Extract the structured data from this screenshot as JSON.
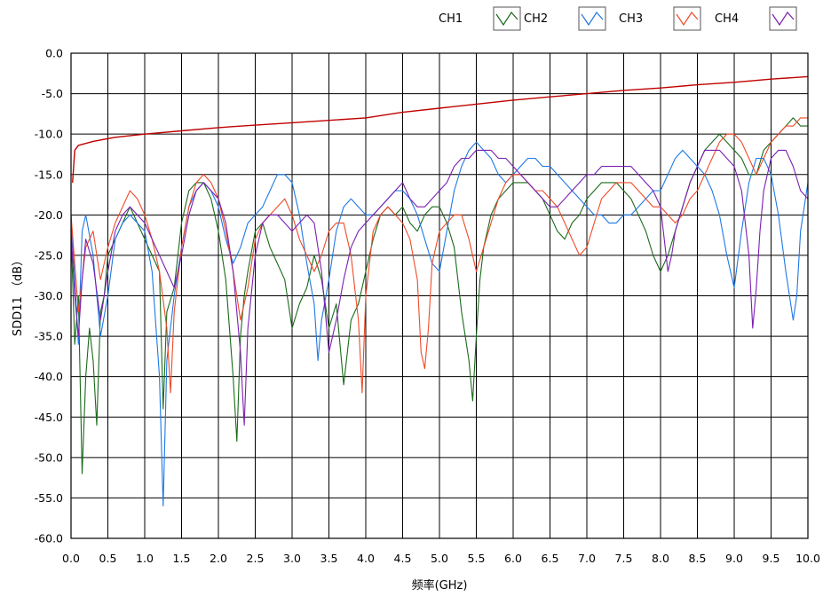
{
  "chart_data": {
    "type": "line",
    "title": "",
    "xlabel": "频率(GHz)",
    "ylabel": "SDD11 （dB）",
    "xlim": [
      0,
      10
    ],
    "ylim": [
      -60,
      0
    ],
    "grid": true,
    "legend_position": "top-right",
    "x_ticks": [
      "0.0",
      "0.5",
      "1.0",
      "1.5",
      "2.0",
      "2.5",
      "3.0",
      "3.5",
      "4.0",
      "4.5",
      "5.0",
      "5.5",
      "6.0",
      "6.5",
      "7.0",
      "7.5",
      "8.0",
      "8.5",
      "9.0",
      "9.5",
      "10.0"
    ],
    "y_ticks": [
      "0.0",
      "-5.0",
      "-10.0",
      "-15.0",
      "-20.0",
      "-25.0",
      "-30.0",
      "-35.0",
      "-40.0",
      "-45.0",
      "-50.0",
      "-55.0",
      "-60.0"
    ],
    "limit_line": {
      "color": "#c00000",
      "x": [
        0.02,
        0.05,
        0.1,
        0.3,
        0.6,
        1.0,
        1.5,
        2.0,
        2.5,
        3.0,
        3.5,
        4.0,
        4.5,
        5.0,
        5.5,
        6.0,
        6.5,
        7.0,
        7.5,
        8.0,
        8.5,
        9.0,
        9.5,
        10.0
      ],
      "y": [
        -16.0,
        -12.0,
        -11.4,
        -10.9,
        -10.4,
        -10.0,
        -9.6,
        -9.2,
        -8.9,
        -8.6,
        -8.3,
        -8.0,
        -7.3,
        -6.8,
        -6.3,
        -5.8,
        -5.4,
        -5.0,
        -4.6,
        -4.3,
        -3.9,
        -3.6,
        -3.2,
        -2.9
      ]
    },
    "series": [
      {
        "name": "CH1",
        "color": "#1a6a1a",
        "x": [
          0.0,
          0.05,
          0.1,
          0.15,
          0.2,
          0.25,
          0.3,
          0.35,
          0.4,
          0.45,
          0.5,
          0.6,
          0.7,
          0.8,
          0.9,
          1.0,
          1.1,
          1.2,
          1.25,
          1.3,
          1.4,
          1.5,
          1.6,
          1.7,
          1.8,
          1.9,
          2.0,
          2.1,
          2.2,
          2.25,
          2.3,
          2.35,
          2.4,
          2.5,
          2.6,
          2.7,
          2.8,
          2.9,
          3.0,
          3.1,
          3.2,
          3.3,
          3.4,
          3.5,
          3.6,
          3.7,
          3.8,
          3.9,
          4.0,
          4.1,
          4.2,
          4.3,
          4.4,
          4.5,
          4.6,
          4.7,
          4.8,
          4.9,
          5.0,
          5.1,
          5.2,
          5.3,
          5.4,
          5.45,
          5.5,
          5.55,
          5.6,
          5.7,
          5.8,
          5.9,
          6.0,
          6.1,
          6.2,
          6.3,
          6.4,
          6.5,
          6.6,
          6.7,
          6.8,
          6.9,
          7.0,
          7.1,
          7.2,
          7.3,
          7.4,
          7.5,
          7.6,
          7.7,
          7.8,
          7.9,
          8.0,
          8.1,
          8.2,
          8.3,
          8.4,
          8.5,
          8.6,
          8.7,
          8.8,
          8.9,
          9.0,
          9.1,
          9.2,
          9.3,
          9.4,
          9.5,
          9.6,
          9.7,
          9.8,
          9.9,
          10.0
        ],
        "y": [
          -22,
          -36,
          -30,
          -52,
          -40,
          -34,
          -38,
          -46,
          -32,
          -30,
          -25,
          -23,
          -21,
          -19,
          -21,
          -23,
          -25,
          -27,
          -44,
          -32,
          -29,
          -21,
          -17,
          -16,
          -16,
          -18,
          -22,
          -28,
          -40,
          -48,
          -35,
          -30,
          -27,
          -22,
          -21,
          -24,
          -26,
          -28,
          -34,
          -31,
          -29,
          -25,
          -28,
          -34,
          -31,
          -41,
          -33,
          -31,
          -27,
          -23,
          -20,
          -19,
          -20,
          -19,
          -21,
          -22,
          -20,
          -19,
          -19,
          -21,
          -24,
          -32,
          -38,
          -43,
          -35,
          -28,
          -24,
          -20,
          -18,
          -17,
          -16,
          -16,
          -16,
          -17,
          -18,
          -20,
          -22,
          -23,
          -21,
          -20,
          -18,
          -17,
          -16,
          -16,
          -16,
          -17,
          -18,
          -20,
          -22,
          -25,
          -27,
          -25,
          -22,
          -19,
          -16,
          -14,
          -12,
          -11,
          -10,
          -11,
          -12,
          -13,
          -15,
          -15,
          -12,
          -11,
          -10,
          -9,
          -8,
          -9,
          -9
        ]
      },
      {
        "name": "CH2",
        "color": "#1e78e6",
        "x": [
          0.0,
          0.05,
          0.1,
          0.15,
          0.2,
          0.3,
          0.4,
          0.5,
          0.6,
          0.7,
          0.8,
          0.9,
          1.0,
          1.1,
          1.2,
          1.25,
          1.3,
          1.4,
          1.5,
          1.6,
          1.7,
          1.8,
          1.9,
          2.0,
          2.1,
          2.2,
          2.3,
          2.4,
          2.5,
          2.6,
          2.7,
          2.8,
          2.9,
          3.0,
          3.1,
          3.2,
          3.3,
          3.35,
          3.4,
          3.5,
          3.6,
          3.7,
          3.8,
          3.9,
          4.0,
          4.1,
          4.2,
          4.3,
          4.4,
          4.5,
          4.6,
          4.7,
          4.8,
          4.9,
          5.0,
          5.1,
          5.2,
          5.3,
          5.4,
          5.5,
          5.6,
          5.7,
          5.8,
          5.9,
          6.0,
          6.1,
          6.2,
          6.3,
          6.4,
          6.5,
          6.6,
          6.7,
          6.8,
          6.9,
          7.0,
          7.1,
          7.2,
          7.3,
          7.4,
          7.5,
          7.6,
          7.7,
          7.8,
          7.9,
          8.0,
          8.1,
          8.2,
          8.3,
          8.4,
          8.5,
          8.6,
          8.7,
          8.8,
          8.9,
          9.0,
          9.1,
          9.2,
          9.3,
          9.4,
          9.5,
          9.6,
          9.7,
          9.8,
          9.85,
          9.9,
          10.0
        ],
        "y": [
          -20,
          -28,
          -36,
          -22,
          -20,
          -25,
          -35,
          -30,
          -23,
          -21,
          -20,
          -21,
          -22,
          -27,
          -40,
          -56,
          -38,
          -30,
          -24,
          -19,
          -17,
          -16,
          -17,
          -19,
          -23,
          -26,
          -24,
          -21,
          -20,
          -19,
          -17,
          -15,
          -15,
          -16,
          -20,
          -26,
          -31,
          -38,
          -33,
          -28,
          -22,
          -19,
          -18,
          -19,
          -20,
          -20,
          -19,
          -18,
          -17,
          -17,
          -18,
          -20,
          -23,
          -26,
          -27,
          -22,
          -17,
          -14,
          -12,
          -11,
          -12,
          -13,
          -15,
          -16,
          -15,
          -14,
          -13,
          -13,
          -14,
          -14,
          -15,
          -16,
          -17,
          -18,
          -19,
          -20,
          -20,
          -21,
          -21,
          -20,
          -20,
          -19,
          -18,
          -17,
          -17,
          -15,
          -13,
          -12,
          -13,
          -14,
          -15,
          -17,
          -20,
          -25,
          -29,
          -22,
          -16,
          -13,
          -13,
          -15,
          -20,
          -27,
          -33,
          -30,
          -22,
          -16
        ]
      },
      {
        "name": "CH3",
        "color": "#f04a28",
        "x": [
          0.0,
          0.05,
          0.1,
          0.15,
          0.2,
          0.3,
          0.4,
          0.5,
          0.6,
          0.7,
          0.8,
          0.9,
          1.0,
          1.1,
          1.2,
          1.3,
          1.35,
          1.4,
          1.5,
          1.6,
          1.7,
          1.8,
          1.9,
          2.0,
          2.1,
          2.2,
          2.3,
          2.4,
          2.5,
          2.6,
          2.7,
          2.8,
          2.9,
          3.0,
          3.1,
          3.2,
          3.3,
          3.4,
          3.5,
          3.6,
          3.7,
          3.8,
          3.9,
          3.95,
          4.0,
          4.1,
          4.2,
          4.3,
          4.4,
          4.5,
          4.6,
          4.7,
          4.75,
          4.8,
          4.85,
          4.9,
          5.0,
          5.1,
          5.2,
          5.3,
          5.4,
          5.5,
          5.6,
          5.7,
          5.8,
          5.9,
          6.0,
          6.1,
          6.2,
          6.3,
          6.4,
          6.5,
          6.6,
          6.7,
          6.8,
          6.9,
          7.0,
          7.1,
          7.2,
          7.3,
          7.4,
          7.5,
          7.6,
          7.7,
          7.8,
          7.9,
          8.0,
          8.1,
          8.2,
          8.3,
          8.4,
          8.5,
          8.6,
          8.7,
          8.8,
          8.9,
          9.0,
          9.1,
          9.2,
          9.3,
          9.4,
          9.5,
          9.6,
          9.7,
          9.8,
          9.9,
          10.0
        ],
        "y": [
          -20,
          -26,
          -32,
          -28,
          -24,
          -22,
          -28,
          -24,
          -21,
          -19,
          -17,
          -18,
          -20,
          -23,
          -27,
          -34,
          -42,
          -32,
          -24,
          -19,
          -16,
          -15,
          -16,
          -18,
          -22,
          -27,
          -33,
          -29,
          -23,
          -21,
          -20,
          -19,
          -18,
          -20,
          -23,
          -25,
          -27,
          -25,
          -22,
          -21,
          -21,
          -25,
          -33,
          -42,
          -30,
          -22,
          -20,
          -19,
          -20,
          -21,
          -23,
          -28,
          -37,
          -39,
          -34,
          -26,
          -22,
          -21,
          -20,
          -20,
          -23,
          -27,
          -24,
          -21,
          -18,
          -16,
          -15,
          -15,
          -16,
          -17,
          -17,
          -18,
          -19,
          -21,
          -23,
          -25,
          -24,
          -21,
          -18,
          -17,
          -16,
          -16,
          -16,
          -17,
          -18,
          -19,
          -19,
          -20,
          -21,
          -20,
          -18,
          -17,
          -15,
          -13,
          -11,
          -10,
          -10,
          -11,
          -13,
          -15,
          -13,
          -11,
          -10,
          -9,
          -9,
          -8,
          -8
        ]
      },
      {
        "name": "CH4",
        "color": "#7a1fb0",
        "x": [
          0.0,
          0.05,
          0.1,
          0.15,
          0.2,
          0.3,
          0.4,
          0.5,
          0.6,
          0.7,
          0.8,
          0.9,
          1.0,
          1.1,
          1.2,
          1.3,
          1.4,
          1.5,
          1.6,
          1.7,
          1.8,
          1.9,
          2.0,
          2.1,
          2.2,
          2.3,
          2.35,
          2.4,
          2.5,
          2.6,
          2.7,
          2.8,
          2.9,
          3.0,
          3.1,
          3.2,
          3.3,
          3.4,
          3.5,
          3.6,
          3.7,
          3.8,
          3.9,
          4.0,
          4.1,
          4.2,
          4.3,
          4.4,
          4.5,
          4.6,
          4.7,
          4.8,
          4.9,
          5.0,
          5.1,
          5.2,
          5.3,
          5.4,
          5.5,
          5.6,
          5.7,
          5.8,
          5.9,
          6.0,
          6.1,
          6.2,
          6.3,
          6.4,
          6.5,
          6.6,
          6.7,
          6.8,
          6.9,
          7.0,
          7.1,
          7.2,
          7.3,
          7.4,
          7.5,
          7.6,
          7.7,
          7.8,
          7.9,
          8.0,
          8.05,
          8.1,
          8.15,
          8.2,
          8.3,
          8.4,
          8.5,
          8.6,
          8.7,
          8.8,
          8.9,
          9.0,
          9.1,
          9.2,
          9.25,
          9.3,
          9.35,
          9.4,
          9.5,
          9.6,
          9.7,
          9.8,
          9.9,
          10.0
        ],
        "y": [
          -22,
          -30,
          -35,
          -28,
          -23,
          -26,
          -33,
          -27,
          -22,
          -20,
          -19,
          -20,
          -21,
          -23,
          -25,
          -27,
          -29,
          -25,
          -20,
          -17,
          -16,
          -17,
          -18,
          -21,
          -27,
          -37,
          -46,
          -34,
          -25,
          -21,
          -20,
          -20,
          -21,
          -22,
          -21,
          -20,
          -21,
          -27,
          -37,
          -33,
          -28,
          -24,
          -22,
          -21,
          -20,
          -19,
          -18,
          -17,
          -16,
          -18,
          -19,
          -19,
          -18,
          -17,
          -16,
          -14,
          -13,
          -13,
          -12,
          -12,
          -12,
          -13,
          -13,
          -14,
          -15,
          -16,
          -17,
          -18,
          -19,
          -19,
          -18,
          -17,
          -16,
          -15,
          -15,
          -14,
          -14,
          -14,
          -14,
          -14,
          -15,
          -16,
          -17,
          -19,
          -23,
          -27,
          -25,
          -22,
          -19,
          -16,
          -14,
          -12,
          -12,
          -12,
          -13,
          -14,
          -17,
          -25,
          -34,
          -29,
          -22,
          -17,
          -13,
          -12,
          -12,
          -14,
          -17,
          -18
        ]
      }
    ]
  }
}
